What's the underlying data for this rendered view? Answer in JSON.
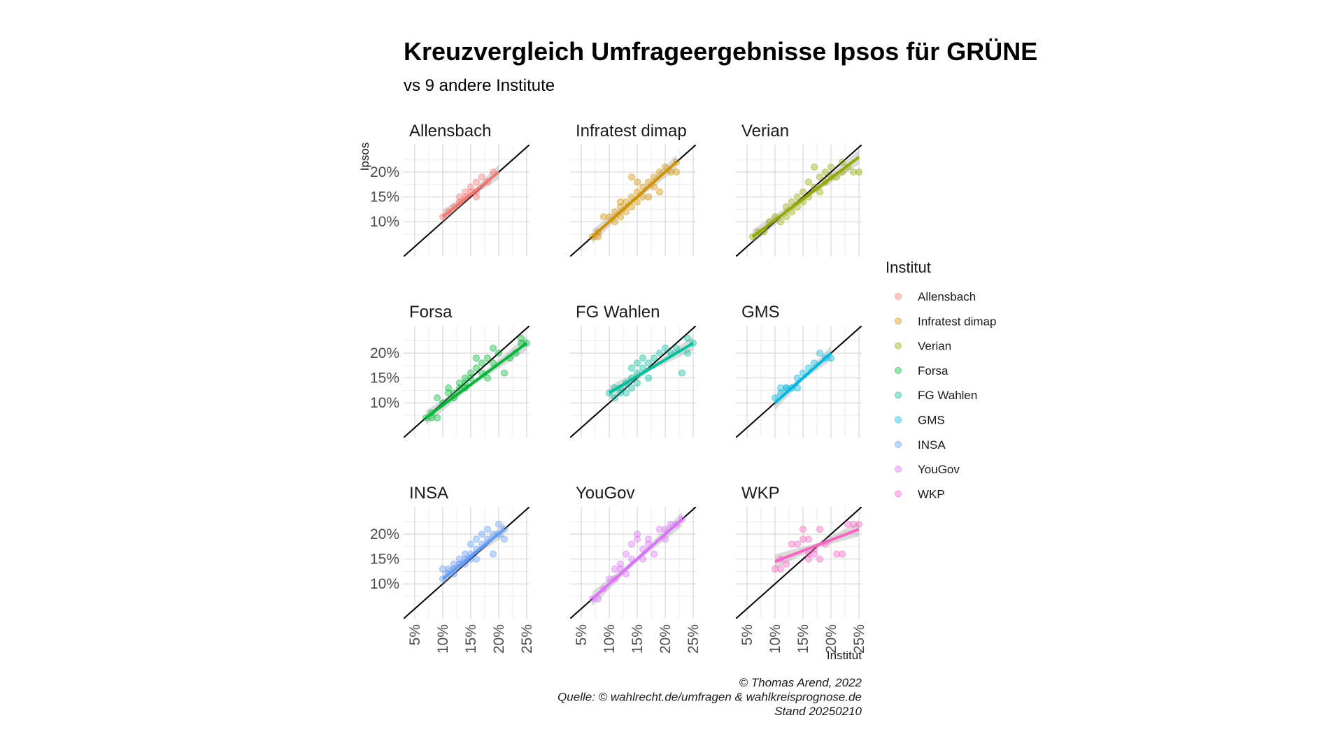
{
  "title": "Kreuzvergleich Umfrageergebnisse Ipsos für GRÜNE",
  "subtitle": "vs 9 andere Institute",
  "caption": [
    "© Thomas Arend, 2022",
    "Quelle: © wahlrecht.de/umfragen & wahlkreisprognose.de",
    "Stand 20250210"
  ],
  "legend": {
    "title": "Institut",
    "position": "right"
  },
  "chart_data": {
    "type": "scatter",
    "xlabel": "Institut",
    "ylabel": "Ipsos",
    "xlim": [
      0.05,
      0.25
    ],
    "ylim": [
      0.05,
      0.25
    ],
    "x_ticks": [
      "5%",
      "10%",
      "15%",
      "20%",
      "25%"
    ],
    "y_ticks": [
      "10%",
      "15%",
      "20%"
    ],
    "reference_line": "y = x",
    "grid": true,
    "panels": [
      {
        "name": "Allensbach",
        "color": "#F8766D",
        "fit": [
          0.1,
          0.11,
          0.2,
          0.2
        ],
        "points": [
          [
            0.1,
            0.11
          ],
          [
            0.11,
            0.12
          ],
          [
            0.12,
            0.13
          ],
          [
            0.13,
            0.14
          ],
          [
            0.14,
            0.15
          ],
          [
            0.14,
            0.16
          ],
          [
            0.15,
            0.16
          ],
          [
            0.15,
            0.17
          ],
          [
            0.16,
            0.18
          ],
          [
            0.16,
            0.15
          ],
          [
            0.17,
            0.19
          ],
          [
            0.18,
            0.18
          ],
          [
            0.19,
            0.2
          ],
          [
            0.13,
            0.15
          ],
          [
            0.16,
            0.16
          ]
        ]
      },
      {
        "name": "Infratest dimap",
        "color": "#D39200",
        "fit": [
          0.07,
          0.07,
          0.22,
          0.22
        ],
        "points": [
          [
            0.07,
            0.07
          ],
          [
            0.08,
            0.07
          ],
          [
            0.08,
            0.08
          ],
          [
            0.09,
            0.11
          ],
          [
            0.1,
            0.11
          ],
          [
            0.11,
            0.1
          ],
          [
            0.11,
            0.12
          ],
          [
            0.12,
            0.13
          ],
          [
            0.12,
            0.11
          ],
          [
            0.13,
            0.14
          ],
          [
            0.13,
            0.12
          ],
          [
            0.14,
            0.13
          ],
          [
            0.14,
            0.15
          ],
          [
            0.15,
            0.14
          ],
          [
            0.15,
            0.16
          ],
          [
            0.16,
            0.15
          ],
          [
            0.16,
            0.17
          ],
          [
            0.17,
            0.18
          ],
          [
            0.17,
            0.15
          ],
          [
            0.18,
            0.19
          ],
          [
            0.18,
            0.17
          ],
          [
            0.19,
            0.2
          ],
          [
            0.19,
            0.16
          ],
          [
            0.2,
            0.21
          ],
          [
            0.21,
            0.2
          ],
          [
            0.22,
            0.22
          ],
          [
            0.22,
            0.2
          ],
          [
            0.14,
            0.19
          ],
          [
            0.15,
            0.18
          ],
          [
            0.12,
            0.14
          ]
        ]
      },
      {
        "name": "Verian",
        "color": "#93AA00",
        "fit": [
          0.06,
          0.07,
          0.25,
          0.23
        ],
        "points": [
          [
            0.06,
            0.07
          ],
          [
            0.07,
            0.08
          ],
          [
            0.08,
            0.08
          ],
          [
            0.09,
            0.1
          ],
          [
            0.1,
            0.11
          ],
          [
            0.11,
            0.1
          ],
          [
            0.12,
            0.13
          ],
          [
            0.13,
            0.12
          ],
          [
            0.14,
            0.15
          ],
          [
            0.15,
            0.14
          ],
          [
            0.15,
            0.16
          ],
          [
            0.16,
            0.15
          ],
          [
            0.16,
            0.18
          ],
          [
            0.17,
            0.17
          ],
          [
            0.18,
            0.16
          ],
          [
            0.18,
            0.19
          ],
          [
            0.19,
            0.18
          ],
          [
            0.19,
            0.2
          ],
          [
            0.2,
            0.21
          ],
          [
            0.21,
            0.19
          ],
          [
            0.22,
            0.2
          ],
          [
            0.22,
            0.22
          ],
          [
            0.23,
            0.21
          ],
          [
            0.24,
            0.2
          ],
          [
            0.25,
            0.2
          ],
          [
            0.17,
            0.21
          ],
          [
            0.14,
            0.13
          ],
          [
            0.13,
            0.14
          ],
          [
            0.2,
            0.19
          ],
          [
            0.12,
            0.11
          ]
        ]
      },
      {
        "name": "Forsa",
        "color": "#00BA38",
        "fit": [
          0.07,
          0.07,
          0.25,
          0.22
        ],
        "points": [
          [
            0.07,
            0.07
          ],
          [
            0.08,
            0.08
          ],
          [
            0.09,
            0.07
          ],
          [
            0.09,
            0.11
          ],
          [
            0.1,
            0.1
          ],
          [
            0.11,
            0.12
          ],
          [
            0.11,
            0.13
          ],
          [
            0.12,
            0.12
          ],
          [
            0.13,
            0.13
          ],
          [
            0.13,
            0.14
          ],
          [
            0.14,
            0.15
          ],
          [
            0.14,
            0.13
          ],
          [
            0.15,
            0.16
          ],
          [
            0.15,
            0.15
          ],
          [
            0.16,
            0.17
          ],
          [
            0.16,
            0.19
          ],
          [
            0.17,
            0.18
          ],
          [
            0.17,
            0.16
          ],
          [
            0.18,
            0.19
          ],
          [
            0.18,
            0.15
          ],
          [
            0.19,
            0.21
          ],
          [
            0.19,
            0.18
          ],
          [
            0.2,
            0.2
          ],
          [
            0.21,
            0.16
          ],
          [
            0.22,
            0.19
          ],
          [
            0.23,
            0.2
          ],
          [
            0.24,
            0.22
          ],
          [
            0.24,
            0.23
          ],
          [
            0.25,
            0.22
          ],
          [
            0.12,
            0.11
          ],
          [
            0.08,
            0.07
          ],
          [
            0.14,
            0.14
          ]
        ]
      },
      {
        "name": "FG Wahlen",
        "color": "#00C19F",
        "fit": [
          0.1,
          0.12,
          0.25,
          0.22
        ],
        "points": [
          [
            0.1,
            0.12
          ],
          [
            0.11,
            0.11
          ],
          [
            0.11,
            0.13
          ],
          [
            0.12,
            0.12
          ],
          [
            0.12,
            0.13
          ],
          [
            0.13,
            0.14
          ],
          [
            0.13,
            0.12
          ],
          [
            0.14,
            0.15
          ],
          [
            0.14,
            0.13
          ],
          [
            0.15,
            0.16
          ],
          [
            0.15,
            0.18
          ],
          [
            0.16,
            0.17
          ],
          [
            0.16,
            0.19
          ],
          [
            0.17,
            0.15
          ],
          [
            0.17,
            0.18
          ],
          [
            0.18,
            0.19
          ],
          [
            0.19,
            0.2
          ],
          [
            0.2,
            0.21
          ],
          [
            0.21,
            0.2
          ],
          [
            0.22,
            0.21
          ],
          [
            0.23,
            0.16
          ],
          [
            0.24,
            0.2
          ],
          [
            0.24,
            0.23
          ],
          [
            0.25,
            0.22
          ],
          [
            0.15,
            0.14
          ],
          [
            0.14,
            0.17
          ]
        ]
      },
      {
        "name": "GMS",
        "color": "#00B9E3",
        "fit": [
          0.1,
          0.1,
          0.2,
          0.2
        ],
        "points": [
          [
            0.1,
            0.11
          ],
          [
            0.11,
            0.12
          ],
          [
            0.11,
            0.13
          ],
          [
            0.12,
            0.13
          ],
          [
            0.13,
            0.13
          ],
          [
            0.14,
            0.13
          ],
          [
            0.14,
            0.15
          ],
          [
            0.15,
            0.16
          ],
          [
            0.16,
            0.17
          ],
          [
            0.17,
            0.18
          ],
          [
            0.18,
            0.2
          ],
          [
            0.19,
            0.19
          ],
          [
            0.2,
            0.19
          ],
          [
            0.12,
            0.13
          ]
        ]
      },
      {
        "name": "INSA",
        "color": "#619CFF",
        "fit": [
          0.1,
          0.11,
          0.21,
          0.21
        ],
        "points": [
          [
            0.1,
            0.11
          ],
          [
            0.1,
            0.13
          ],
          [
            0.11,
            0.12
          ],
          [
            0.11,
            0.13
          ],
          [
            0.12,
            0.13
          ],
          [
            0.12,
            0.14
          ],
          [
            0.13,
            0.14
          ],
          [
            0.13,
            0.15
          ],
          [
            0.14,
            0.15
          ],
          [
            0.14,
            0.16
          ],
          [
            0.15,
            0.16
          ],
          [
            0.15,
            0.18
          ],
          [
            0.16,
            0.17
          ],
          [
            0.16,
            0.19
          ],
          [
            0.17,
            0.2
          ],
          [
            0.17,
            0.18
          ],
          [
            0.18,
            0.21
          ],
          [
            0.18,
            0.19
          ],
          [
            0.19,
            0.2
          ],
          [
            0.2,
            0.22
          ],
          [
            0.21,
            0.21
          ],
          [
            0.21,
            0.19
          ],
          [
            0.2,
            0.2
          ],
          [
            0.16,
            0.15
          ],
          [
            0.19,
            0.16
          ],
          [
            0.14,
            0.14
          ],
          [
            0.12,
            0.12
          ],
          [
            0.15,
            0.15
          ]
        ]
      },
      {
        "name": "YouGov",
        "color": "#DB72FB",
        "fit": [
          0.07,
          0.07,
          0.23,
          0.23
        ],
        "points": [
          [
            0.07,
            0.07
          ],
          [
            0.08,
            0.07
          ],
          [
            0.09,
            0.09
          ],
          [
            0.1,
            0.11
          ],
          [
            0.11,
            0.11
          ],
          [
            0.11,
            0.13
          ],
          [
            0.12,
            0.13
          ],
          [
            0.12,
            0.14
          ],
          [
            0.13,
            0.16
          ],
          [
            0.14,
            0.15
          ],
          [
            0.14,
            0.18
          ],
          [
            0.15,
            0.19
          ],
          [
            0.15,
            0.2
          ],
          [
            0.16,
            0.17
          ],
          [
            0.16,
            0.15
          ],
          [
            0.17,
            0.19
          ],
          [
            0.18,
            0.16
          ],
          [
            0.19,
            0.21
          ],
          [
            0.2,
            0.19
          ],
          [
            0.2,
            0.21
          ],
          [
            0.21,
            0.22
          ],
          [
            0.22,
            0.22
          ],
          [
            0.23,
            0.23
          ],
          [
            0.13,
            0.12
          ],
          [
            0.17,
            0.18
          ]
        ]
      },
      {
        "name": "WKP",
        "color": "#FF61C3",
        "fit": [
          0.1,
          0.145,
          0.25,
          0.21
        ],
        "points": [
          [
            0.1,
            0.13
          ],
          [
            0.11,
            0.13
          ],
          [
            0.11,
            0.15
          ],
          [
            0.12,
            0.14
          ],
          [
            0.13,
            0.18
          ],
          [
            0.14,
            0.18
          ],
          [
            0.15,
            0.19
          ],
          [
            0.15,
            0.21
          ],
          [
            0.16,
            0.16
          ],
          [
            0.16,
            0.15
          ],
          [
            0.17,
            0.17
          ],
          [
            0.17,
            0.16
          ],
          [
            0.18,
            0.21
          ],
          [
            0.18,
            0.15
          ],
          [
            0.19,
            0.18
          ],
          [
            0.21,
            0.16
          ],
          [
            0.22,
            0.16
          ],
          [
            0.23,
            0.22
          ],
          [
            0.24,
            0.22
          ],
          [
            0.25,
            0.22
          ],
          [
            0.16,
            0.19
          ]
        ]
      }
    ]
  }
}
